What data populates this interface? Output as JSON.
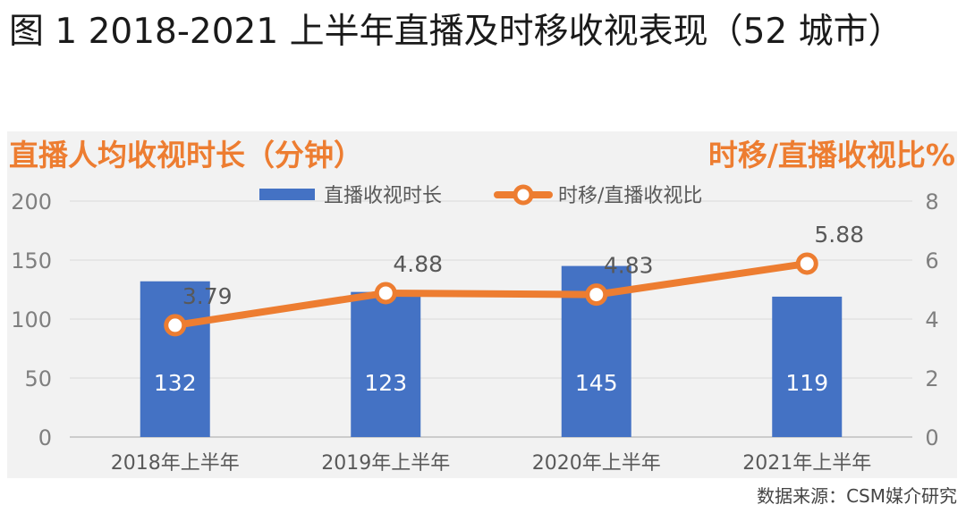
{
  "figure": {
    "title": "图 1 2018-2021 上半年直播及时移收视表现（52 城市）",
    "source": "数据来源：CSM媒介研究"
  },
  "chart_data": {
    "type": "bar",
    "categories": [
      "2018年上半年",
      "2019年上半年",
      "2020年上半年",
      "2021年上半年"
    ],
    "y_axis_title": "直播人均收视时长（分钟）",
    "y2_axis_title": "时移/直播收视比%",
    "ylim": [
      0,
      200
    ],
    "yticks": [
      0,
      50,
      100,
      150,
      200
    ],
    "y2lim": [
      0,
      8
    ],
    "y2ticks": [
      0,
      2,
      4,
      6,
      8
    ],
    "grid": true,
    "legend_position": "top",
    "series": [
      {
        "name": "直播收视时长",
        "type": "bar",
        "axis": "left",
        "color": "#4472c4",
        "values": [
          132,
          123,
          145,
          119
        ],
        "labels": [
          "132",
          "123",
          "145",
          "119"
        ]
      },
      {
        "name": "时移/直播收视比",
        "type": "line",
        "axis": "right",
        "color": "#ed7d31",
        "values": [
          3.79,
          4.88,
          4.83,
          5.88
        ],
        "labels": [
          "3.79",
          "4.88",
          "4.83",
          "5.88"
        ]
      }
    ]
  }
}
